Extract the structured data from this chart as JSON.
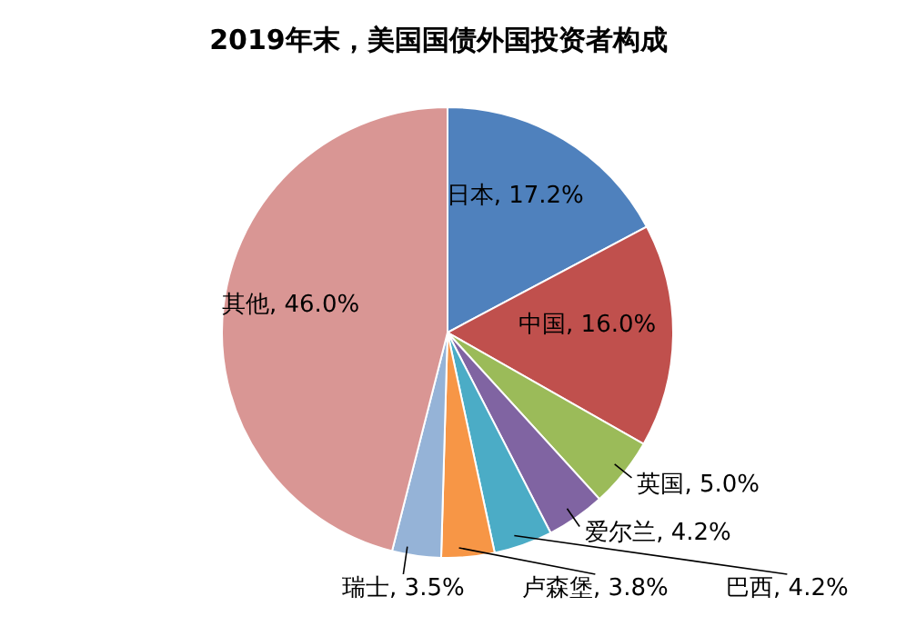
{
  "chart_data": {
    "type": "pie",
    "title": "2019年末，美国国债外国投资者构成",
    "categories": [
      "日本",
      "中国",
      "英国",
      "爱尔兰",
      "巴西",
      "卢森堡",
      "瑞士",
      "其他"
    ],
    "values": [
      17.2,
      16.0,
      5.0,
      4.2,
      4.2,
      3.8,
      3.5,
      46.0
    ],
    "value_labels": [
      "17.2%",
      "16.0%",
      "5.0%",
      "4.2%",
      "4.2%",
      "3.8%",
      "3.5%",
      "46.0%"
    ],
    "colors": [
      "#4f81bd",
      "#c0504d",
      "#9bbb59",
      "#8064a2",
      "#4bacc6",
      "#f79646",
      "#95b3d7",
      "#d99694"
    ],
    "legend": false
  }
}
